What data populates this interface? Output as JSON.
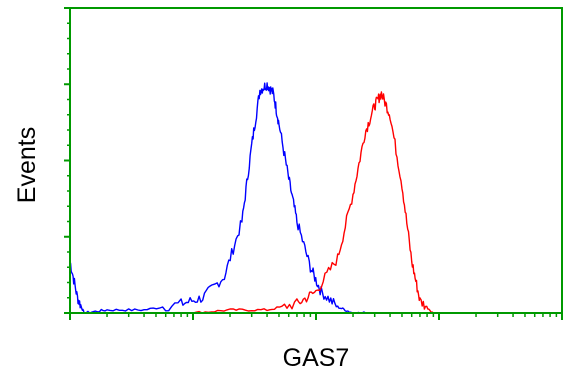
{
  "chart_data": {
    "type": "line",
    "title": "",
    "xlabel": "GAS7",
    "ylabel": "Events",
    "x_scale": "log",
    "xlim": [
      1,
      10000
    ],
    "ylim": [
      0,
      1
    ],
    "grid": false,
    "legend": "none",
    "series": [
      {
        "color": "#0000ff",
        "x": [
          1,
          1.15,
          1.3,
          2,
          4,
          8,
          12,
          18,
          25,
          30,
          35,
          40,
          45,
          50,
          60,
          70,
          90,
          110,
          150,
          200,
          300
        ],
        "y": [
          0.17,
          0.05,
          0.0,
          0.01,
          0.01,
          0.03,
          0.05,
          0.12,
          0.3,
          0.55,
          0.73,
          0.75,
          0.72,
          0.62,
          0.44,
          0.3,
          0.15,
          0.07,
          0.02,
          0.0,
          0.0
        ]
      },
      {
        "color": "#ff0000",
        "x": [
          10,
          20,
          40,
          70,
          100,
          150,
          200,
          250,
          300,
          340,
          400,
          500,
          600,
          700,
          900
        ],
        "y": [
          0.0,
          0.01,
          0.01,
          0.03,
          0.07,
          0.18,
          0.39,
          0.59,
          0.68,
          0.72,
          0.65,
          0.42,
          0.17,
          0.04,
          0.0
        ]
      }
    ],
    "colors": {
      "axis": "#009900",
      "frame": "#009900"
    }
  }
}
